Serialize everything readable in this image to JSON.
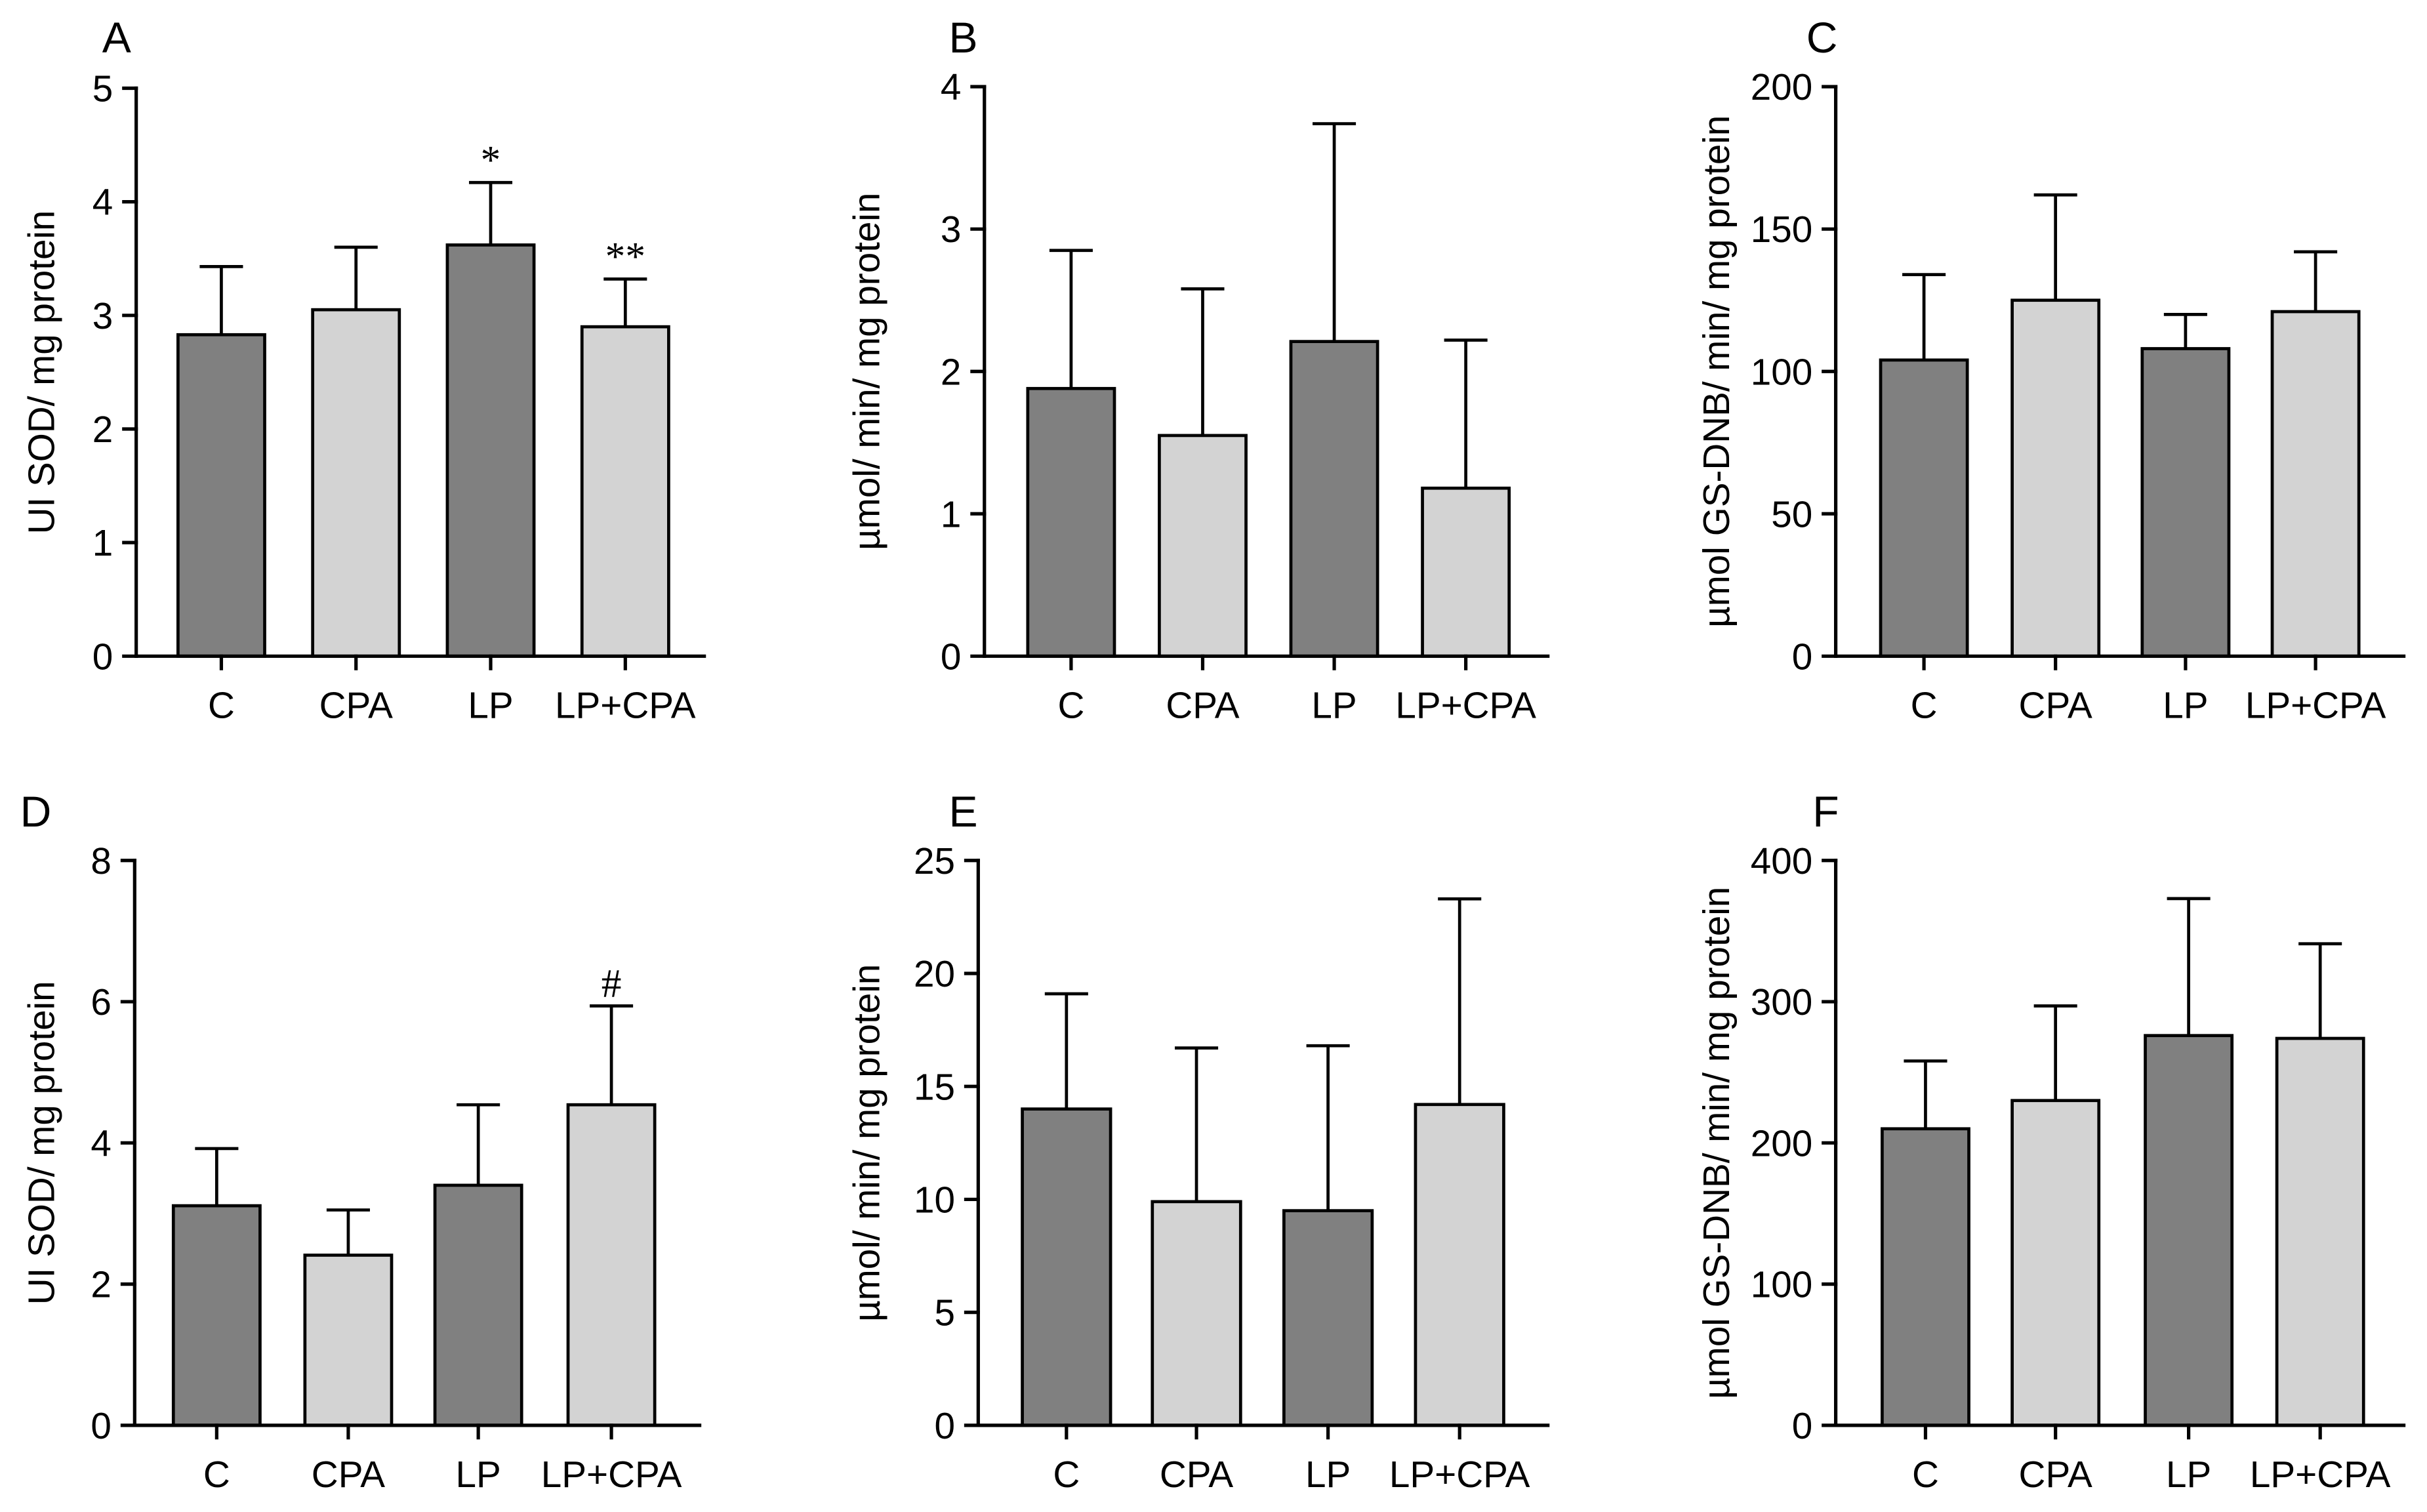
{
  "style": {
    "bar_colors": [
      "#808080",
      "#d3d3d3",
      "#808080",
      "#d3d3d3"
    ],
    "axis_color": "#000000"
  },
  "chart_data": [
    {
      "panel": "A",
      "type": "bar",
      "ylabel": "UI SOD/ mg protein",
      "ylim": [
        0,
        5
      ],
      "yticks": [
        0,
        1,
        2,
        3,
        4,
        5
      ],
      "categories": [
        "C",
        "CPA",
        "LP",
        "LP+CPA"
      ],
      "values": [
        2.83,
        3.05,
        3.62,
        2.9
      ],
      "errors": [
        0.6,
        0.55,
        0.55,
        0.42
      ],
      "annotations": [
        null,
        null,
        "*",
        "**"
      ]
    },
    {
      "panel": "B",
      "type": "bar",
      "ylabel": "µmol/ min/ mg protein",
      "ylim": [
        0,
        4
      ],
      "yticks": [
        0,
        1,
        2,
        3,
        4
      ],
      "categories": [
        "C",
        "CPA",
        "LP",
        "LP+CPA"
      ],
      "values": [
        1.88,
        1.55,
        2.21,
        1.18
      ],
      "errors": [
        0.97,
        1.03,
        1.53,
        1.04
      ],
      "annotations": [
        null,
        null,
        null,
        null
      ]
    },
    {
      "panel": "C",
      "type": "bar",
      "ylabel": "µmol GS-DNB/ min/ mg protein",
      "ylim": [
        0,
        200
      ],
      "yticks": [
        0,
        50,
        100,
        150,
        200
      ],
      "categories": [
        "C",
        "CPA",
        "LP",
        "LP+CPA"
      ],
      "values": [
        104,
        125,
        108,
        121
      ],
      "errors": [
        30,
        37,
        12,
        21
      ],
      "annotations": [
        null,
        null,
        null,
        null
      ]
    },
    {
      "panel": "D",
      "type": "bar",
      "ylabel": "UI SOD/ mg protein",
      "ylim": [
        0,
        8
      ],
      "yticks": [
        0,
        2,
        4,
        6,
        8
      ],
      "categories": [
        "C",
        "CPA",
        "LP",
        "LP+CPA"
      ],
      "values": [
        3.11,
        2.41,
        3.4,
        4.54
      ],
      "errors": [
        0.81,
        0.64,
        1.14,
        1.4
      ],
      "annotations": [
        null,
        null,
        null,
        "#"
      ]
    },
    {
      "panel": "E",
      "type": "bar",
      "ylabel": "µmol/ min/ mg protein",
      "ylim": [
        0,
        25
      ],
      "yticks": [
        0,
        5,
        10,
        15,
        20,
        25
      ],
      "categories": [
        "C",
        "CPA",
        "LP",
        "LP+CPA"
      ],
      "values": [
        14.0,
        9.9,
        9.5,
        14.2
      ],
      "errors": [
        5.1,
        6.8,
        7.3,
        9.1
      ],
      "annotations": [
        null,
        null,
        null,
        null
      ]
    },
    {
      "panel": "F",
      "type": "bar",
      "ylabel": "µmol GS-DNB/ min/ mg protein",
      "ylim": [
        0,
        400
      ],
      "yticks": [
        0,
        100,
        200,
        300,
        400
      ],
      "categories": [
        "C",
        "CPA",
        "LP",
        "LP+CPA"
      ],
      "values": [
        210,
        230,
        276,
        274
      ],
      "errors": [
        48,
        67,
        97,
        67
      ],
      "annotations": [
        null,
        null,
        null,
        null
      ]
    }
  ]
}
